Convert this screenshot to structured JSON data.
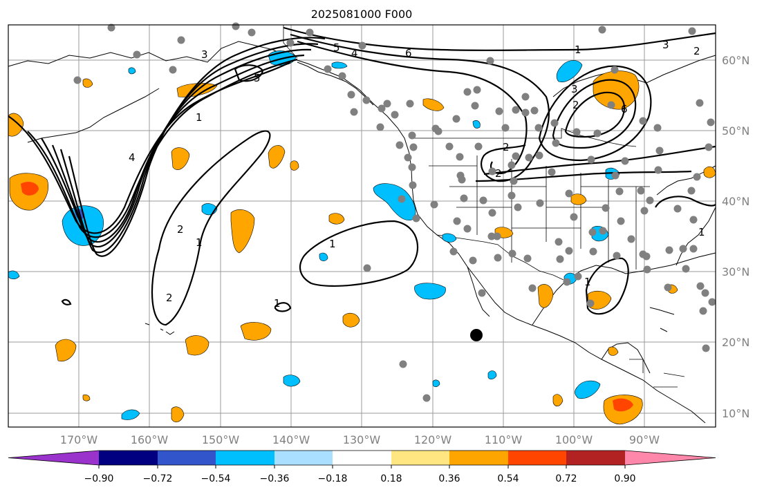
{
  "title": "2025081000 F000",
  "map": {
    "lon_range": [
      -180,
      -80
    ],
    "lat_range": [
      8,
      65
    ],
    "lon_ticks": [
      "170°W",
      "160°W",
      "150°W",
      "140°W",
      "130°W",
      "120°W",
      "110°W",
      "100°W",
      "90°W"
    ],
    "lat_ticks": [
      "60°N",
      "50°N",
      "40°N",
      "30°N",
      "20°N",
      "10°N"
    ],
    "gridlines": true
  },
  "colorbar": {
    "colors": [
      "#9933cc",
      "#000080",
      "#3355cc",
      "#00bfff",
      "#aadfff",
      "#ffffff",
      "#ffe680",
      "#ffa500",
      "#ff4500",
      "#b22222",
      "#ff88aa"
    ],
    "tick_labels": [
      "−0.90",
      "−0.72",
      "−0.54",
      "−0.36",
      "−0.18",
      "0.18",
      "0.36",
      "0.54",
      "0.72",
      "0.90"
    ],
    "extend": "both"
  },
  "contour_labels": [
    "1",
    "2",
    "3",
    "4",
    "5",
    "6",
    "1",
    "2",
    "1",
    "2",
    "5",
    "4",
    "3",
    "2",
    "1",
    "6",
    "1",
    "2",
    "3",
    "1",
    "1",
    "2"
  ],
  "colors": {
    "gridline": "#9a9a9a",
    "station": "#808080",
    "label_gray": "#808080"
  }
}
